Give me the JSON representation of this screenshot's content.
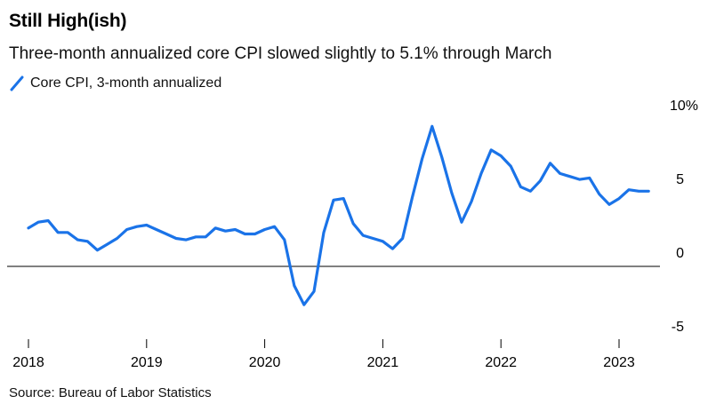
{
  "title": "Still High(ish)",
  "subtitle": "Three-month annualized core CPI slowed slightly to 5.1% through March",
  "source": "Source: Bureau of Labor Statistics",
  "colors": {
    "series": "#1a73e8",
    "zero_line": "#000000",
    "tick": "#000000"
  },
  "chart_data": {
    "type": "line",
    "title": "Still High(ish)",
    "ylim": [
      -5,
      10
    ],
    "y_ticks": [
      {
        "value": 10,
        "label": "10%"
      },
      {
        "value": 5,
        "label": "5"
      },
      {
        "value": 0,
        "label": "0"
      },
      {
        "value": -5,
        "label": "-5"
      }
    ],
    "x_ticks": [
      {
        "value": 2018.0,
        "label": "2018"
      },
      {
        "value": 2019.0,
        "label": "2019"
      },
      {
        "value": 2020.0,
        "label": "2020"
      },
      {
        "value": 2021.0,
        "label": "2021"
      },
      {
        "value": 2022.0,
        "label": "2022"
      },
      {
        "value": 2023.0,
        "label": "2023"
      }
    ],
    "xlim": [
      2018.0,
      2023.3
    ],
    "series": [
      {
        "name": "Core CPI, 3-month annualized",
        "x": [
          2018.0,
          2018.083,
          2018.167,
          2018.25,
          2018.333,
          2018.417,
          2018.5,
          2018.583,
          2018.667,
          2018.75,
          2018.833,
          2018.917,
          2019.0,
          2019.083,
          2019.167,
          2019.25,
          2019.333,
          2019.417,
          2019.5,
          2019.583,
          2019.667,
          2019.75,
          2019.833,
          2019.917,
          2020.0,
          2020.083,
          2020.167,
          2020.25,
          2020.333,
          2020.417,
          2020.5,
          2020.583,
          2020.667,
          2020.75,
          2020.833,
          2020.917,
          2021.0,
          2021.083,
          2021.167,
          2021.25,
          2021.333,
          2021.417,
          2021.5,
          2021.583,
          2021.667,
          2021.75,
          2021.833,
          2021.917,
          2022.0,
          2022.083,
          2022.167,
          2022.25,
          2022.333,
          2022.417,
          2022.5,
          2022.583,
          2022.667,
          2022.75,
          2022.833,
          2022.917,
          2023.0,
          2023.083,
          2023.167,
          2023.25
        ],
        "values": [
          2.6,
          3.0,
          3.1,
          2.3,
          2.3,
          1.8,
          1.7,
          1.1,
          1.5,
          1.9,
          2.5,
          2.7,
          2.8,
          2.5,
          2.2,
          1.9,
          1.8,
          2.0,
          2.0,
          2.6,
          2.4,
          2.5,
          2.2,
          2.2,
          2.5,
          2.7,
          1.8,
          -1.3,
          -2.6,
          -1.7,
          2.3,
          4.5,
          4.6,
          2.9,
          2.1,
          1.9,
          1.7,
          1.2,
          1.9,
          4.7,
          7.3,
          9.5,
          7.4,
          5.0,
          3.0,
          4.4,
          6.3,
          7.9,
          7.5,
          6.8,
          5.4,
          5.1,
          5.8,
          7.0,
          6.3,
          6.1,
          5.9,
          6.0,
          4.9,
          4.2,
          4.6,
          5.2,
          5.1,
          5.1
        ]
      }
    ]
  }
}
